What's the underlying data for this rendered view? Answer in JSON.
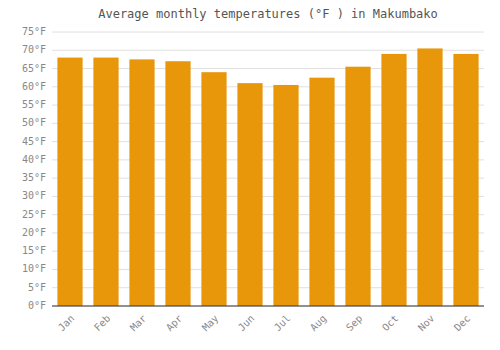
{
  "chart_data": {
    "type": "bar",
    "title": "Average monthly temperatures (°F ) in Makumbako",
    "categories": [
      "Jan",
      "Feb",
      "Mar",
      "Apr",
      "May",
      "Jun",
      "Jul",
      "Aug",
      "Sep",
      "Oct",
      "Nov",
      "Dec"
    ],
    "values": [
      68,
      68,
      67.5,
      67,
      64,
      61,
      60.5,
      62.5,
      65.5,
      69,
      70.5,
      69
    ],
    "color": "#E8960A",
    "ylim": [
      0,
      75
    ],
    "yticks": [
      {
        "value": 0,
        "label": "0°F"
      },
      {
        "value": 5,
        "label": "5°F"
      },
      {
        "value": 10,
        "label": "10°F"
      },
      {
        "value": 15,
        "label": "15°F"
      },
      {
        "value": 20,
        "label": "20°F"
      },
      {
        "value": 25,
        "label": "25°F"
      },
      {
        "value": 30,
        "label": "30°F"
      },
      {
        "value": 35,
        "label": "35°F"
      },
      {
        "value": 40,
        "label": "40°F"
      },
      {
        "value": 45,
        "label": "45°F"
      },
      {
        "value": 50,
        "label": "50°F"
      },
      {
        "value": 55,
        "label": "55°F"
      },
      {
        "value": 60,
        "label": "60°F"
      },
      {
        "value": 65,
        "label": "65°F"
      },
      {
        "value": 70,
        "label": "70°F"
      },
      {
        "value": 75,
        "label": "75°F"
      }
    ],
    "grid": true
  }
}
